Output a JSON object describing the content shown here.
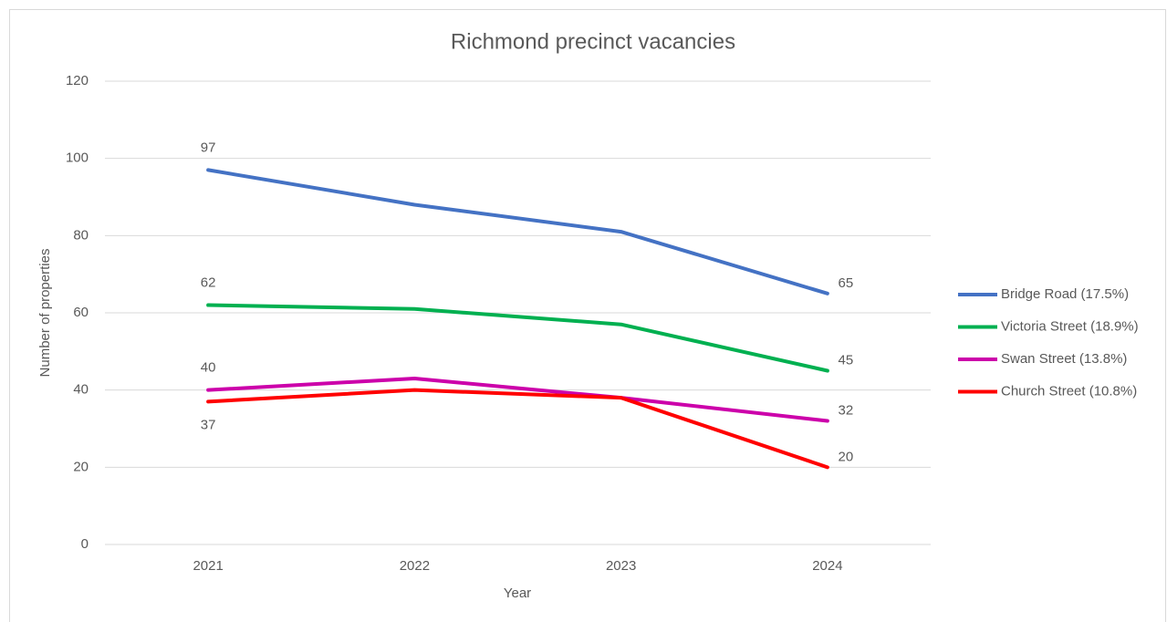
{
  "chart_data": {
    "type": "line",
    "title": "Richmond precinct vacancies",
    "x_label": "Year",
    "y_label": "Number of properties",
    "categories": [
      "2021",
      "2022",
      "2023",
      "2024"
    ],
    "series": [
      {
        "name": "Bridge Road (17.5%)",
        "color": "#4472c4",
        "values": [
          97,
          88,
          81,
          65
        ]
      },
      {
        "name": "Victoria Street (18.9%)",
        "color": "#00b050",
        "values": [
          62,
          61,
          57,
          45
        ]
      },
      {
        "name": "Swan Street (13.8%)",
        "color": "#cc00aa",
        "values": [
          40,
          43,
          38,
          32
        ]
      },
      {
        "name": "Church Street (10.8%)",
        "color": "#ff0000",
        "values": [
          37,
          40,
          38,
          20
        ]
      }
    ],
    "ylim": [
      0,
      120
    ],
    "yticks": [
      0,
      20,
      40,
      60,
      80,
      100,
      120
    ],
    "grid": true,
    "legend": "right"
  }
}
